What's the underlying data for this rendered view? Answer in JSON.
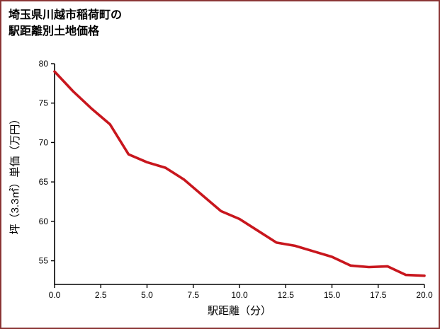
{
  "title": {
    "line1": "埼玉県川越市稲荷町の",
    "line2": "駅距離別土地価格"
  },
  "chart_data": {
    "type": "line",
    "title": "埼玉県川越市稲荷町の駅距離別土地価格",
    "xlabel": "駅距離（分）",
    "ylabel": "坪（3.3㎡）単価（万円）",
    "x": [
      0,
      1,
      2,
      3,
      4,
      5,
      6,
      7,
      8,
      9,
      10,
      11,
      12,
      13,
      14,
      15,
      16,
      17,
      18,
      19,
      20
    ],
    "values": [
      79.0,
      76.5,
      74.3,
      72.3,
      68.5,
      67.5,
      66.8,
      65.3,
      63.3,
      61.3,
      60.3,
      58.8,
      57.3,
      56.9,
      56.2,
      55.5,
      54.4,
      54.2,
      54.3,
      53.2,
      53.1
    ],
    "xlim": [
      0,
      20
    ],
    "ylim": [
      52,
      80
    ],
    "x_ticks": [
      "0.0",
      "2.5",
      "5.0",
      "7.5",
      "10.0",
      "12.5",
      "15.0",
      "17.5",
      "20.0"
    ],
    "y_ticks": [
      "55",
      "60",
      "65",
      "70",
      "75",
      "80"
    ],
    "grid": false,
    "legend_position": "none",
    "line_color": "#c8161d"
  },
  "colors": {
    "frame_border": "#8b3535",
    "axis": "#000000",
    "text": "#000000",
    "background": "#ffffff"
  }
}
